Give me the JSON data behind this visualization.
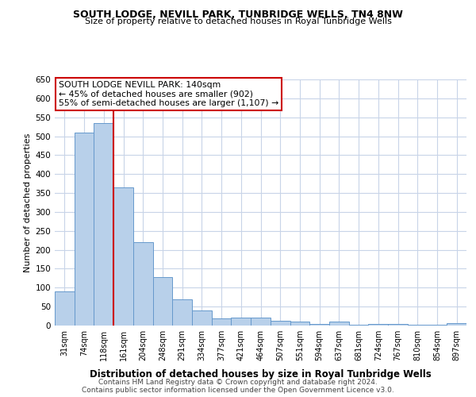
{
  "title": "SOUTH LODGE, NEVILL PARK, TUNBRIDGE WELLS, TN4 8NW",
  "subtitle": "Size of property relative to detached houses in Royal Tunbridge Wells",
  "xlabel": "Distribution of detached houses by size in Royal Tunbridge Wells",
  "ylabel": "Number of detached properties",
  "categories": [
    "31sqm",
    "74sqm",
    "118sqm",
    "161sqm",
    "204sqm",
    "248sqm",
    "291sqm",
    "334sqm",
    "377sqm",
    "421sqm",
    "464sqm",
    "507sqm",
    "551sqm",
    "594sqm",
    "637sqm",
    "681sqm",
    "724sqm",
    "767sqm",
    "810sqm",
    "854sqm",
    "897sqm"
  ],
  "values": [
    90,
    510,
    535,
    365,
    220,
    128,
    70,
    40,
    18,
    20,
    20,
    12,
    10,
    5,
    10,
    3,
    5,
    5,
    3,
    3,
    7
  ],
  "bar_color": "#b8d0ea",
  "bar_edge_color": "#6699cc",
  "background_color": "#ffffff",
  "grid_color": "#c8d4e8",
  "red_line_x": 2.5,
  "annotation_title": "SOUTH LODGE NEVILL PARK: 140sqm",
  "annotation_line1": "← 45% of detached houses are smaller (902)",
  "annotation_line2": "55% of semi-detached houses are larger (1,107) →",
  "annotation_box_color": "#ffffff",
  "annotation_box_edge": "#cc0000",
  "red_line_color": "#cc0000",
  "footnote1": "Contains HM Land Registry data © Crown copyright and database right 2024.",
  "footnote2": "Contains public sector information licensed under the Open Government Licence v3.0.",
  "ylim": [
    0,
    650
  ],
  "yticks": [
    0,
    50,
    100,
    150,
    200,
    250,
    300,
    350,
    400,
    450,
    500,
    550,
    600,
    650
  ]
}
